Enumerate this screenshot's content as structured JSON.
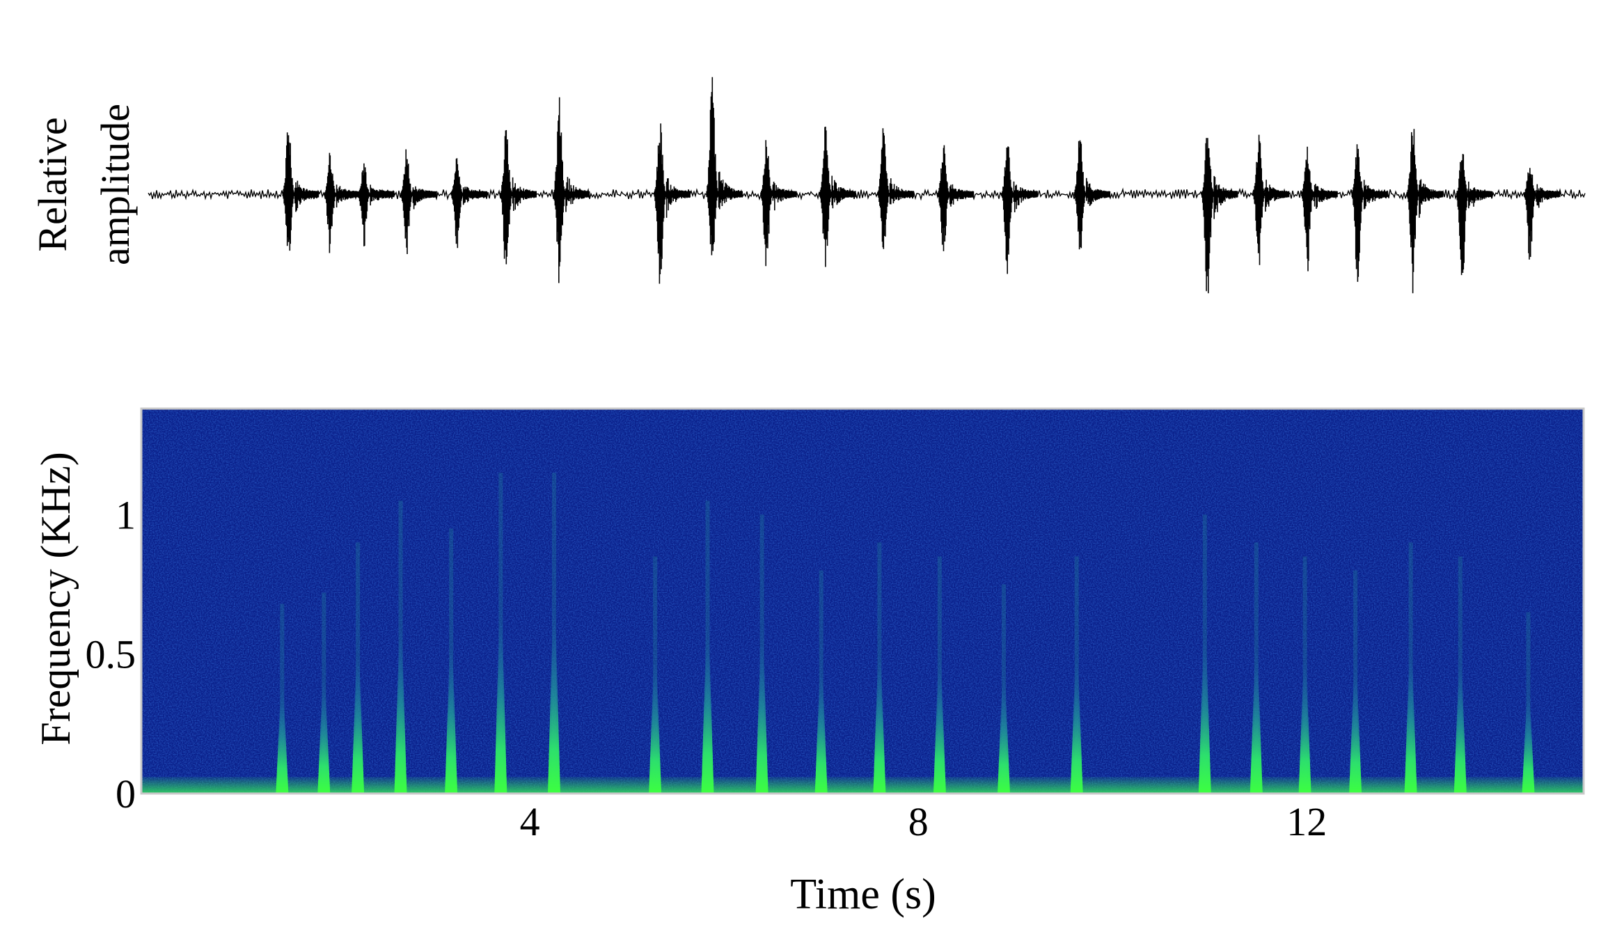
{
  "chart_data": [
    {
      "type": "line",
      "panel": "waveform",
      "ylabel_lines": [
        "Relative",
        "amplitude"
      ],
      "xlim": [
        0,
        14.85
      ],
      "baseline_noise": 0.04,
      "series_color": "#000000",
      "pulses": [
        {
          "t": 1.45,
          "up": 0.6,
          "down": 0.65
        },
        {
          "t": 1.88,
          "up": 0.35,
          "down": 0.5
        },
        {
          "t": 2.23,
          "up": 0.28,
          "down": 0.45
        },
        {
          "t": 2.67,
          "up": 0.38,
          "down": 0.5
        },
        {
          "t": 3.19,
          "up": 0.32,
          "down": 0.45
        },
        {
          "t": 3.7,
          "up": 0.58,
          "down": 0.75
        },
        {
          "t": 4.25,
          "up": 0.8,
          "down": 0.75
        },
        {
          "t": 5.29,
          "up": 0.62,
          "down": 0.85
        },
        {
          "t": 5.83,
          "up": 1.0,
          "down": 0.6
        },
        {
          "t": 6.39,
          "up": 0.45,
          "down": 0.63
        },
        {
          "t": 7.0,
          "up": 0.68,
          "down": 0.63
        },
        {
          "t": 7.6,
          "up": 0.55,
          "down": 0.5
        },
        {
          "t": 8.22,
          "up": 0.42,
          "down": 0.5
        },
        {
          "t": 8.88,
          "up": 0.45,
          "down": 0.65
        },
        {
          "t": 9.63,
          "up": 0.5,
          "down": 0.55
        },
        {
          "t": 10.95,
          "up": 0.65,
          "down": 0.98
        },
        {
          "t": 11.48,
          "up": 0.5,
          "down": 0.6
        },
        {
          "t": 11.98,
          "up": 0.4,
          "down": 0.65
        },
        {
          "t": 12.5,
          "up": 0.45,
          "down": 0.75
        },
        {
          "t": 13.07,
          "up": 0.62,
          "down": 0.8
        },
        {
          "t": 13.58,
          "up": 0.38,
          "down": 0.8
        },
        {
          "t": 14.28,
          "up": 0.3,
          "down": 0.58
        }
      ]
    },
    {
      "type": "heatmap",
      "panel": "spectrogram",
      "xlabel": "Time (s)",
      "ylabel": "Frequency (KHz)",
      "xlim": [
        0,
        14.85
      ],
      "ylim": [
        0,
        1.38
      ],
      "xticks": [
        {
          "value": 4,
          "label": "4"
        },
        {
          "value": 8,
          "label": "8"
        },
        {
          "value": 12,
          "label": "12"
        }
      ],
      "yticks": [
        {
          "value": 0,
          "label": "0"
        },
        {
          "value": 0.5,
          "label": "0.5"
        },
        {
          "value": 1,
          "label": "1"
        }
      ],
      "colors": {
        "background": "#0a1f8a",
        "noise_dark": "#041060",
        "noise_light": "#1c3fb0",
        "mid": "#1f7a9a",
        "hot": "#3dff40",
        "low_band": "#2fd060"
      },
      "low_band_khz": 0.06,
      "calls": [
        {
          "t": 1.45,
          "top_khz": 0.68
        },
        {
          "t": 1.88,
          "top_khz": 0.72
        },
        {
          "t": 2.23,
          "top_khz": 0.9
        },
        {
          "t": 2.67,
          "top_khz": 1.05
        },
        {
          "t": 3.19,
          "top_khz": 0.95
        },
        {
          "t": 3.7,
          "top_khz": 1.15
        },
        {
          "t": 4.25,
          "top_khz": 1.15
        },
        {
          "t": 5.29,
          "top_khz": 0.85
        },
        {
          "t": 5.83,
          "top_khz": 1.05
        },
        {
          "t": 6.39,
          "top_khz": 1.0
        },
        {
          "t": 7.0,
          "top_khz": 0.8
        },
        {
          "t": 7.6,
          "top_khz": 0.9
        },
        {
          "t": 8.22,
          "top_khz": 0.85
        },
        {
          "t": 8.88,
          "top_khz": 0.75
        },
        {
          "t": 9.63,
          "top_khz": 0.85
        },
        {
          "t": 10.95,
          "top_khz": 1.0
        },
        {
          "t": 11.48,
          "top_khz": 0.9
        },
        {
          "t": 11.98,
          "top_khz": 0.85
        },
        {
          "t": 12.5,
          "top_khz": 0.8
        },
        {
          "t": 13.07,
          "top_khz": 0.9
        },
        {
          "t": 13.58,
          "top_khz": 0.85
        },
        {
          "t": 14.28,
          "top_khz": 0.65
        }
      ]
    }
  ]
}
